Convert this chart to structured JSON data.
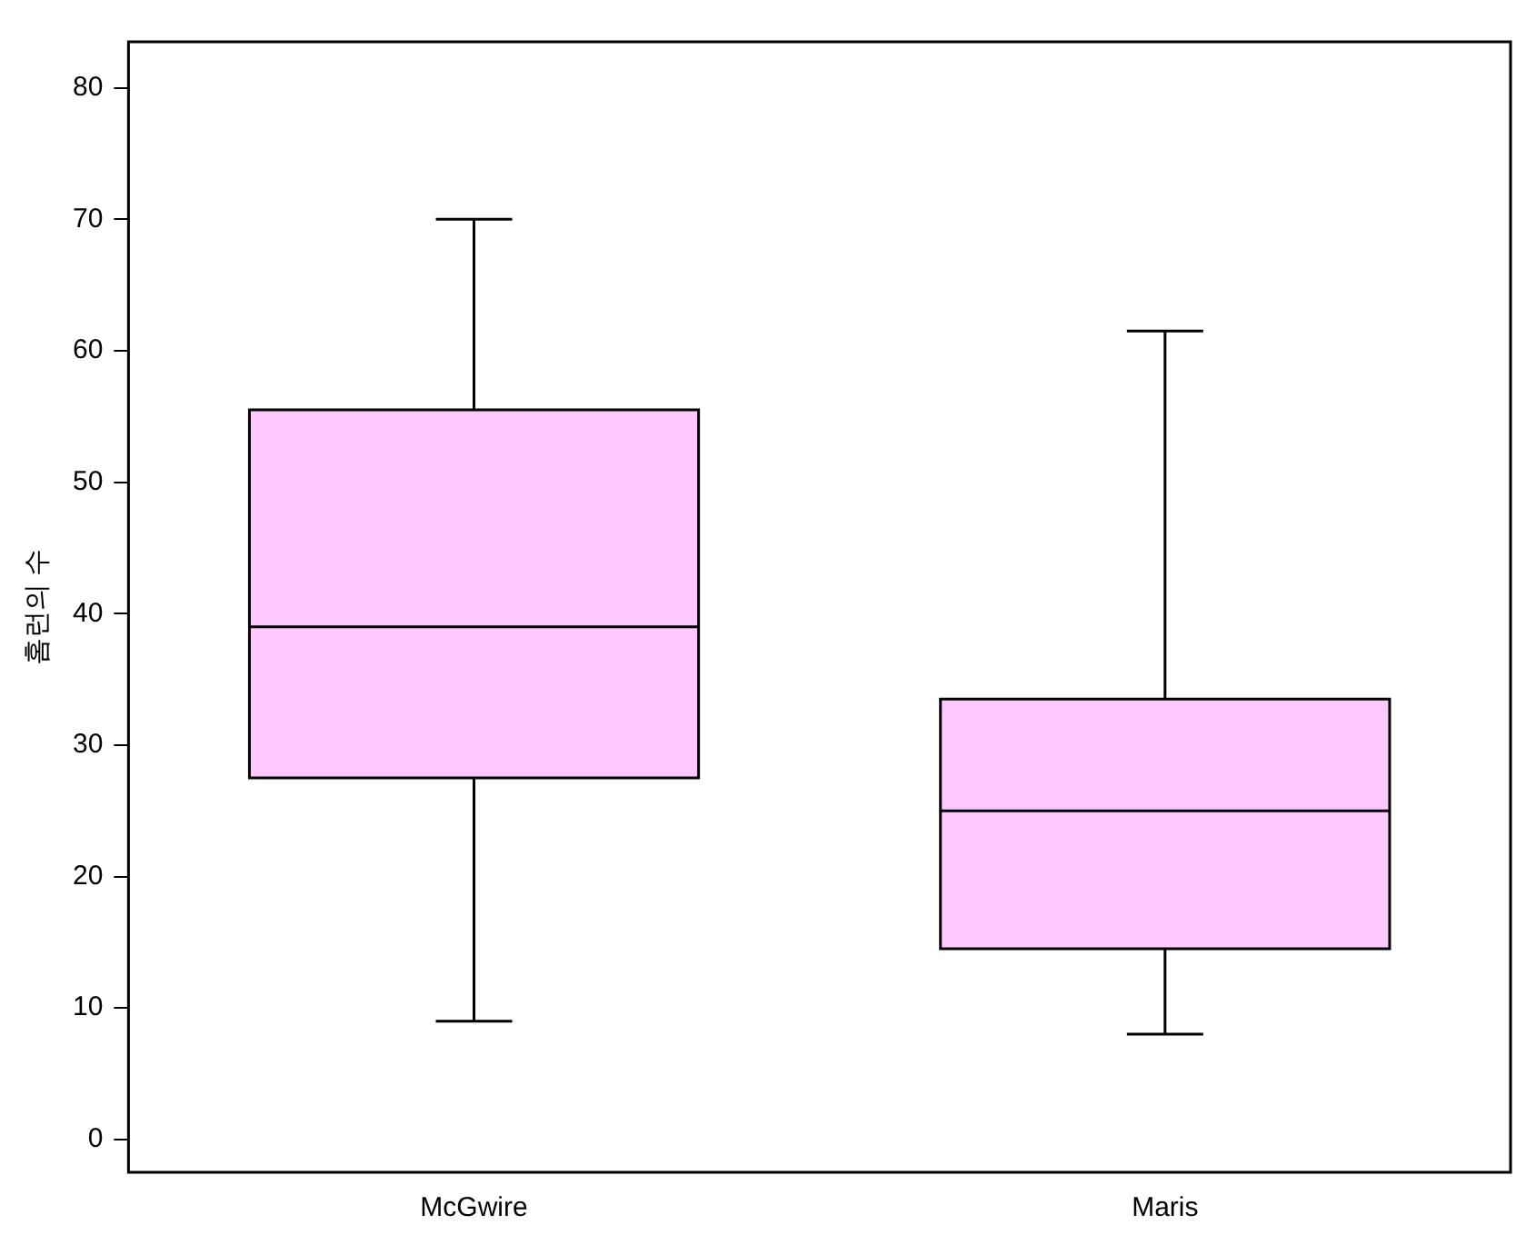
{
  "chart_data": {
    "type": "box",
    "ylabel": "홈런의 수",
    "categories": [
      "McGwire",
      "Maris"
    ],
    "color": "#ffc8ff",
    "boxes": [
      {
        "low": 9,
        "q1": 27.5,
        "median": 39,
        "q3": 55.5,
        "high": 70
      },
      {
        "low": 8,
        "q1": 14.5,
        "median": 25,
        "q3": 33.5,
        "high": 61.5
      }
    ],
    "ylim": [
      -2.5,
      83.5
    ],
    "yticks": [
      0,
      10,
      20,
      30,
      40,
      50,
      60,
      70,
      80
    ],
    "grid": false
  }
}
